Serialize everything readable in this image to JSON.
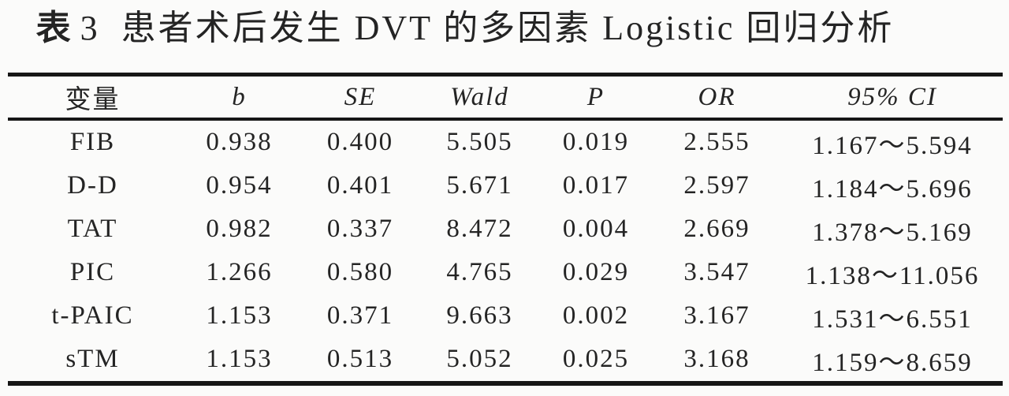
{
  "title": {
    "prefix": "表",
    "number": "3",
    "main": "患者术后发生 DVT 的多因素 Logistic 回归分析"
  },
  "table": {
    "columns": [
      "变量",
      "b",
      "SE",
      "Wald",
      "P",
      "OR",
      "95% CI"
    ],
    "rows": [
      [
        "FIB",
        "0.938",
        "0.400",
        "5.505",
        "0.019",
        "2.555",
        "1.167～5.594"
      ],
      [
        "D-D",
        "0.954",
        "0.401",
        "5.671",
        "0.017",
        "2.597",
        "1.184～5.696"
      ],
      [
        "TAT",
        "0.982",
        "0.337",
        "8.472",
        "0.004",
        "2.669",
        "1.378～5.169"
      ],
      [
        "PIC",
        "1.266",
        "0.580",
        "4.765",
        "0.029",
        "3.547",
        "1.138～11.056"
      ],
      [
        "t-PAIC",
        "1.153",
        "0.371",
        "9.663",
        "0.002",
        "3.167",
        "1.531～6.551"
      ],
      [
        "sTM",
        "1.153",
        "0.513",
        "5.052",
        "0.025",
        "3.168",
        "1.159～8.659"
      ]
    ]
  },
  "colors": {
    "text": "#242424",
    "rule": "#161616",
    "background": "#fbfbfa"
  }
}
